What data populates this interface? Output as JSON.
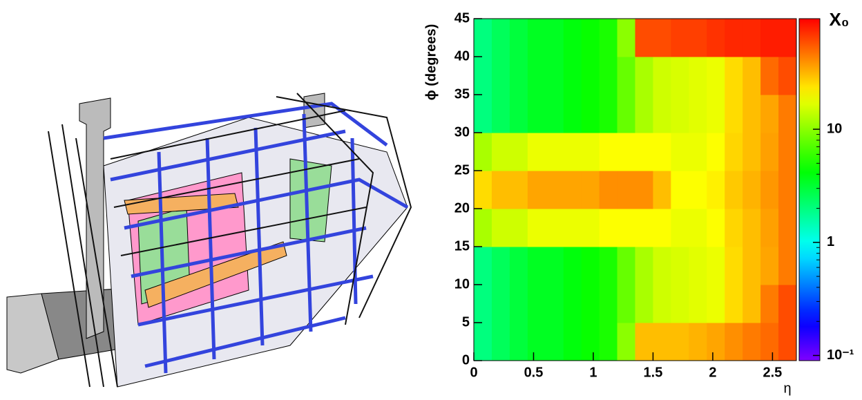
{
  "chart_data": {
    "type": "heatmap",
    "xlabel": "η",
    "ylabel": "ϕ (degrees)",
    "xlim": [
      0,
      2.7
    ],
    "xticks": [
      0,
      0.5,
      1,
      1.5,
      2,
      2.5
    ],
    "ylim": [
      0,
      45
    ],
    "yticks": [
      0,
      5,
      10,
      15,
      20,
      25,
      30,
      35,
      40,
      45
    ],
    "xbins": [
      0,
      0.15,
      0.3,
      0.45,
      0.6,
      0.75,
      0.9,
      1.05,
      1.2,
      1.35,
      1.5,
      1.65,
      1.8,
      1.95,
      2.1,
      2.25,
      2.4,
      2.55,
      2.7
    ],
    "ybins": [
      0,
      5,
      10,
      15,
      20,
      25,
      30,
      35,
      40,
      45
    ],
    "z": [
      [
        2,
        2.5,
        3,
        3.5,
        3.5,
        4,
        4.5,
        5,
        10,
        30,
        30,
        30,
        32,
        35,
        40,
        45,
        50,
        60
      ],
      [
        2,
        2.5,
        3,
        3.5,
        3.5,
        4,
        4.5,
        5,
        8,
        12,
        15,
        16,
        17,
        18,
        25,
        30,
        45,
        60
      ],
      [
        2,
        2.5,
        3,
        3.5,
        3.5,
        4,
        4.5,
        5,
        8,
        12,
        15,
        16,
        17,
        18,
        25,
        30,
        35,
        45
      ],
      [
        12,
        15,
        15,
        18,
        18,
        18,
        18,
        20,
        20,
        20,
        20,
        18,
        18,
        20,
        26,
        30,
        36,
        45
      ],
      [
        25,
        30,
        30,
        35,
        35,
        35,
        35,
        40,
        40,
        40,
        30,
        20,
        20,
        22,
        28,
        32,
        38,
        45
      ],
      [
        12,
        15,
        15,
        18,
        18,
        18,
        18,
        20,
        20,
        20,
        20,
        18,
        18,
        20,
        26,
        30,
        36,
        45
      ],
      [
        2,
        2.5,
        3,
        3.5,
        3.5,
        4,
        4.5,
        5,
        8,
        12,
        15,
        16,
        17,
        18,
        25,
        30,
        35,
        45
      ],
      [
        2,
        2.5,
        3,
        3.5,
        3.5,
        4,
        4.5,
        5,
        8,
        12,
        15,
        16,
        17,
        18,
        25,
        30,
        50,
        60
      ],
      [
        2,
        2.5,
        3,
        3.5,
        3.5,
        4,
        4.5,
        5,
        10,
        60,
        60,
        65,
        65,
        70,
        75,
        75,
        80,
        80
      ]
    ],
    "colorbar": {
      "title": "X₀",
      "log": true,
      "lim": [
        0.09,
        95
      ],
      "ticks": [
        {
          "value": 0.1,
          "label": "10⁻¹"
        },
        1,
        10
      ]
    }
  }
}
